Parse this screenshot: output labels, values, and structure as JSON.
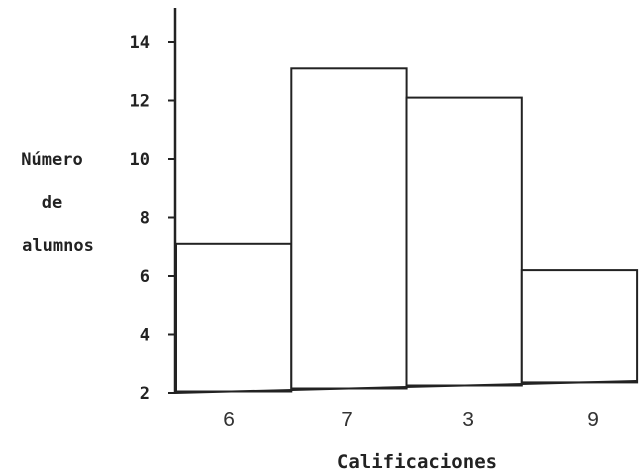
{
  "chart_data": {
    "type": "bar",
    "categories": [
      "6",
      "7",
      "3",
      "9"
    ],
    "values": [
      7.1,
      13.1,
      12.1,
      6.2
    ],
    "title": "",
    "xlabel": "Calificaciones",
    "ylabel_lines": [
      "Número",
      "de",
      "alumnos"
    ],
    "yticks": [
      "2",
      "4",
      "6",
      "8",
      "10",
      "12",
      "14"
    ],
    "ylim": [
      2,
      15
    ],
    "grid": false,
    "legend": "none",
    "colors": {
      "stroke": "#222222",
      "fill": "#ffffff"
    }
  }
}
